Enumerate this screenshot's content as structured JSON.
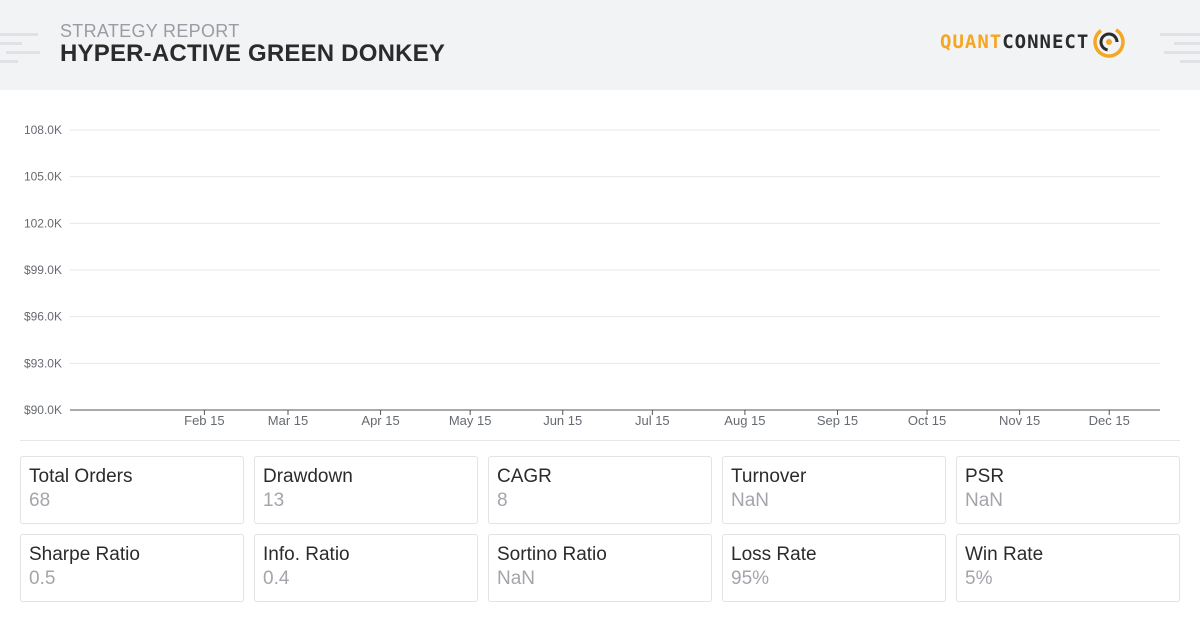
{
  "header": {
    "subtitle": "STRATEGY REPORT",
    "title": "HYPER-ACTIVE GREEN DONKEY",
    "logo_part1": "QUANT",
    "logo_part2": "CONNECT"
  },
  "chart_data": {
    "type": "line",
    "title": "",
    "xlabel": "",
    "ylabel": "",
    "y_ticks": [
      "$90.0K",
      "$93.0K",
      "$96.0K",
      "$99.0K",
      "102.0K",
      "105.0K",
      "108.0K"
    ],
    "ylim": [
      90000,
      108000
    ],
    "x_ticks": [
      "Feb 15",
      "Mar 15",
      "Apr 15",
      "May 15",
      "Jun 15",
      "Jul 15",
      "Aug 15",
      "Sep 15",
      "Oct 15",
      "Nov 15",
      "Dec 15"
    ],
    "x_tick_days": [
      45,
      73,
      104,
      134,
      165,
      195,
      226,
      257,
      287,
      318,
      348
    ],
    "x_range_days": [
      0,
      365
    ],
    "grid": true,
    "series": []
  },
  "stats": [
    {
      "label": "Total Orders",
      "value": "68"
    },
    {
      "label": "Drawdown",
      "value": "13"
    },
    {
      "label": "CAGR",
      "value": "8"
    },
    {
      "label": "Turnover",
      "value": "NaN"
    },
    {
      "label": "PSR",
      "value": "NaN"
    },
    {
      "label": "Sharpe Ratio",
      "value": "0.5"
    },
    {
      "label": "Info. Ratio",
      "value": "0.4"
    },
    {
      "label": "Sortino Ratio",
      "value": "NaN"
    },
    {
      "label": "Loss Rate",
      "value": "95%"
    },
    {
      "label": "Win Rate",
      "value": "5%"
    }
  ],
  "colors": {
    "accent": "#f5a623",
    "header_bg": "#f2f3f5",
    "grid": "#e6e7ea",
    "axis": "#555555"
  },
  "icons": {
    "logo": "quantconnect-logo-icon"
  }
}
